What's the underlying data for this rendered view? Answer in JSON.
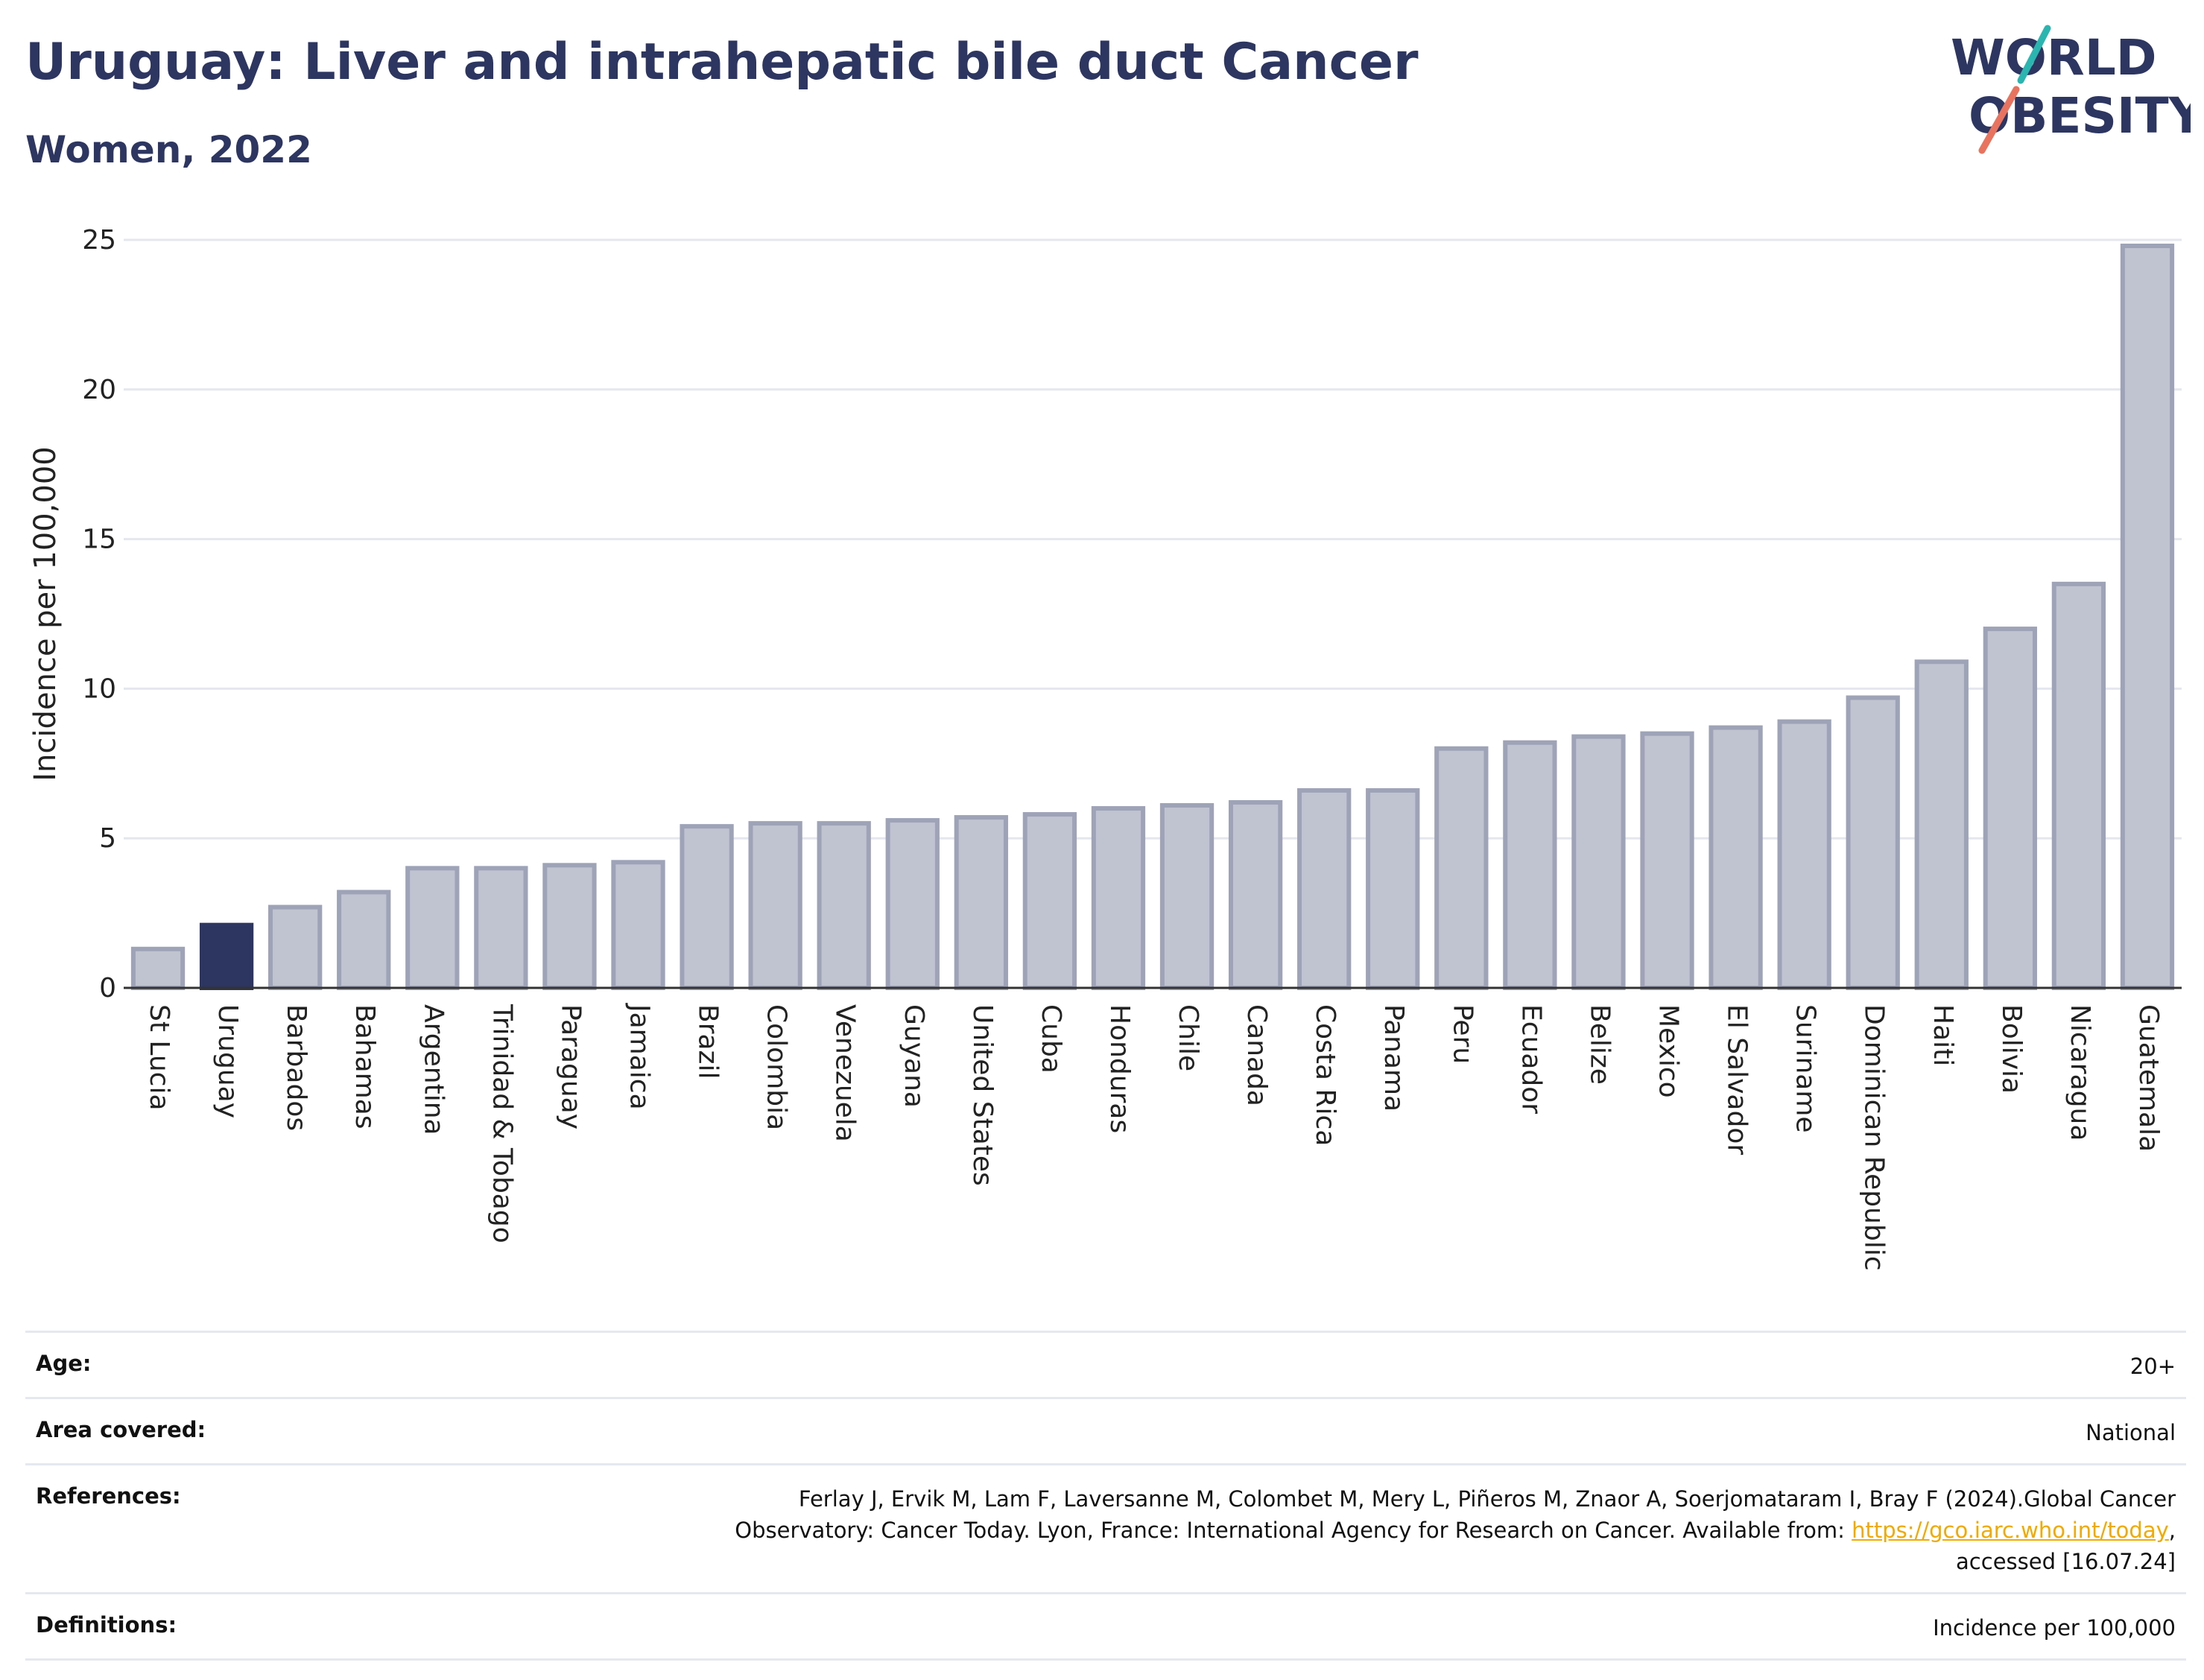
{
  "title": "Uruguay: Liver and intrahepatic bile duct Cancer",
  "subtitle": "Women, 2022",
  "logo": {
    "line1": "WORLD",
    "line2": "OBESITY"
  },
  "colors": {
    "highlight": "#2d3561",
    "bar": "#c0c3d0",
    "bar_edge": "#9ea3b8",
    "title": "#2d3561",
    "logo_teal": "#2ab5b0",
    "logo_coral": "#e8735f"
  },
  "chart_data": {
    "type": "bar",
    "ylabel": "Incidence per 100,000",
    "ylim": [
      0,
      25
    ],
    "yticks": [
      0,
      5,
      10,
      15,
      20,
      25
    ],
    "grid": true,
    "highlight": "Uruguay",
    "categories": [
      "St Lucia",
      "Uruguay",
      "Barbados",
      "Bahamas",
      "Argentina",
      "Trinidad & Tobago",
      "Paraguay",
      "Jamaica",
      "Brazil",
      "Colombia",
      "Venezuela",
      "Guyana",
      "United States",
      "Cuba",
      "Honduras",
      "Chile",
      "Canada",
      "Costa Rica",
      "Panama",
      "Peru",
      "Ecuador",
      "Belize",
      "Mexico",
      "El Salvador",
      "Suriname",
      "Dominican Republic",
      "Haiti",
      "Bolivia",
      "Nicaragua",
      "Guatemala"
    ],
    "values": [
      1.3,
      2.1,
      2.7,
      3.2,
      4.0,
      4.0,
      4.1,
      4.2,
      5.4,
      5.5,
      5.5,
      5.6,
      5.7,
      5.8,
      6.0,
      6.1,
      6.2,
      6.6,
      6.6,
      8.0,
      8.2,
      8.4,
      8.5,
      8.7,
      8.9,
      9.7,
      10.9,
      12.0,
      13.5,
      24.8
    ]
  },
  "meta": {
    "age_label": "Age:",
    "age_value": "20+",
    "area_label": "Area covered:",
    "area_value": "National",
    "references_label": "References:",
    "references_line1": "Ferlay J, Ervik M, Lam F, Laversanne M, Colombet M, Mery L, Piñeros M, Znaor A, Soerjomataram I, Bray F (2024).Global Cancer",
    "references_line2": "Observatory: Cancer Today. Lyon, France: International Agency for Research on Cancer. Available from: ",
    "references_link": "https://gco.iarc.who.int/today",
    "references_line2_end": ",",
    "references_line3": "accessed [16.07.24]",
    "definitions_label": "Definitions:",
    "definitions_value": "Incidence per 100,000"
  }
}
